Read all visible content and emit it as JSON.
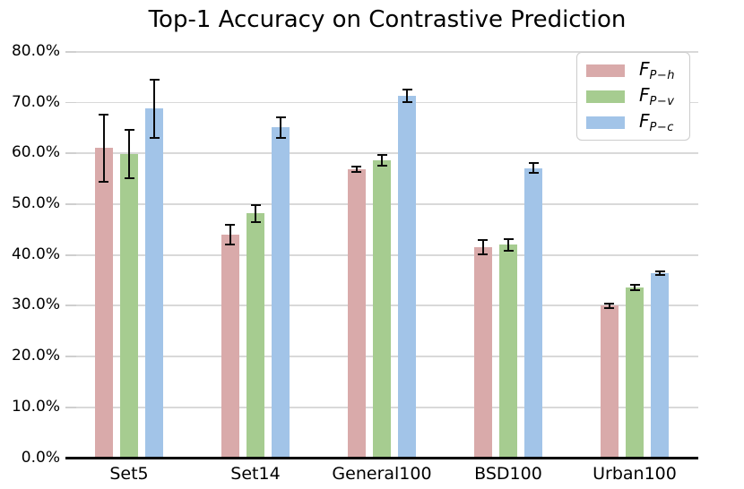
{
  "title": "Top-1 Accuracy on Contrastive Prediction",
  "colors": {
    "series_f_ph": "#d9aaaa",
    "series_f_pv": "#a6cc90",
    "series_f_pc": "#a2c4e8",
    "gridline": "#d9d9d9",
    "axis": "#000000",
    "legend_border": "#cccccc"
  },
  "chart_data": {
    "type": "bar",
    "title": "Top-1 Accuracy on Contrastive Prediction",
    "xlabel": "",
    "ylabel": "",
    "categories": [
      "Set5",
      "Set14",
      "General100",
      "BSD100",
      "Urban100"
    ],
    "series": [
      {
        "name": "F_{P-h}",
        "label_main": "F",
        "label_sub": "P−h",
        "color": "#d9aaaa",
        "values": [
          61.1,
          44.0,
          56.9,
          41.6,
          30.0
        ],
        "errors": [
          6.6,
          2.0,
          0.5,
          1.4,
          0.4
        ]
      },
      {
        "name": "F_{P-v}",
        "label_main": "F",
        "label_sub": "P−v",
        "color": "#a6cc90",
        "values": [
          59.9,
          48.2,
          58.7,
          42.0,
          33.6
        ],
        "errors": [
          4.7,
          1.7,
          1.1,
          1.2,
          0.6
        ]
      },
      {
        "name": "F_{P-c}",
        "label_main": "F",
        "label_sub": "P−c",
        "color": "#a2c4e8",
        "values": [
          68.8,
          65.1,
          71.4,
          57.1,
          36.4
        ],
        "errors": [
          5.8,
          2.0,
          1.2,
          1.0,
          0.3
        ]
      }
    ],
    "ylim": [
      0,
      80
    ],
    "ytick_step": 10,
    "ytick_labels": [
      "0.0%",
      "10.0%",
      "20.0%",
      "30.0%",
      "40.0%",
      "50.0%",
      "60.0%",
      "70.0%",
      "80.0%"
    ],
    "grid": true,
    "error_bars": true,
    "legend_position": "upper right"
  }
}
